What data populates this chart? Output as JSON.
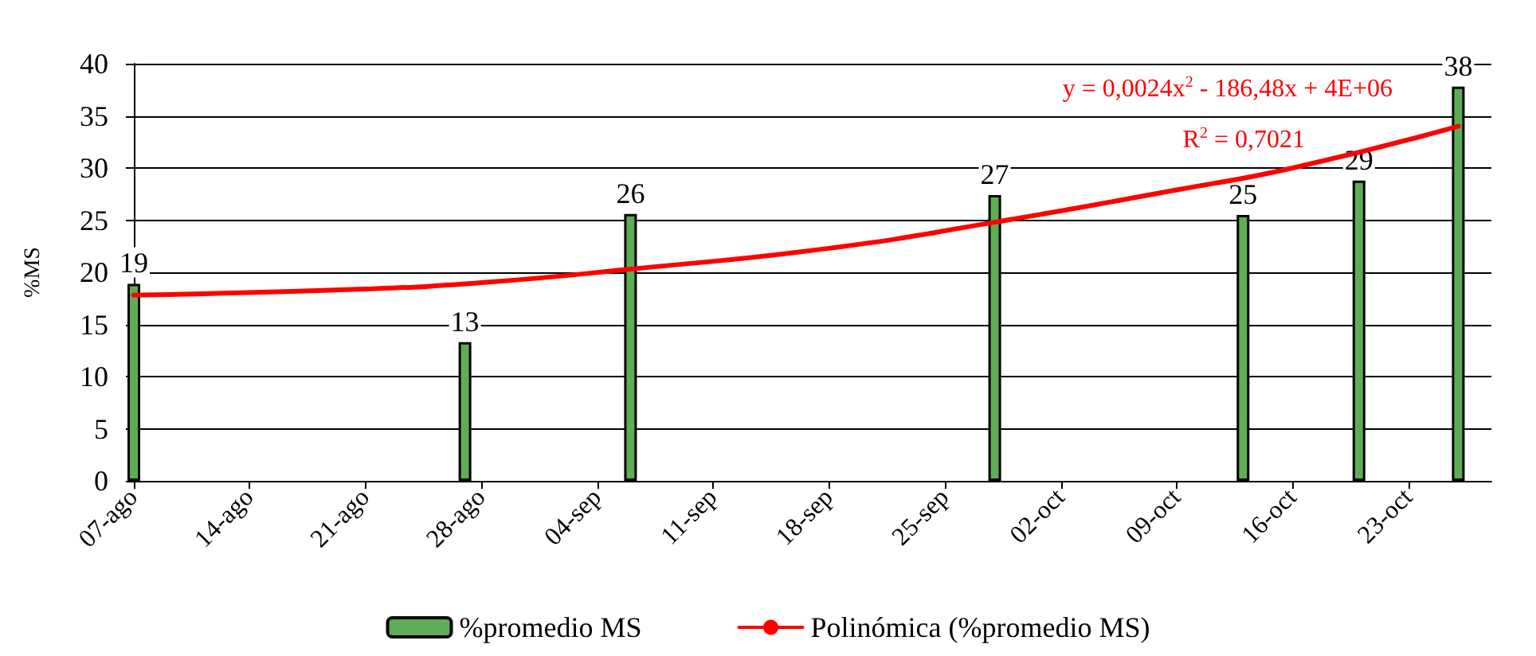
{
  "chart_data": {
    "type": "bar",
    "ylabel": "%MS",
    "x": [
      "--08-07",
      "--08-27",
      "--09-06",
      "--09-28",
      "--10-13",
      "--10-20",
      "--10-26"
    ],
    "series": [
      {
        "name": "%promedio MS",
        "color": "#5fad56",
        "values": [
          18.9,
          13.3,
          25.6,
          27.4,
          25.5,
          28.8,
          37.8
        ],
        "value_labels": [
          "19",
          "13",
          "26",
          "27",
          "25",
          "29",
          "38"
        ]
      },
      {
        "name": "Polinómica (%promedio MS)",
        "type": "line",
        "color": "#ff0000",
        "marker": "none",
        "line_style": "solid",
        "x": [
          "--08-07",
          "--08-21",
          "--08-28",
          "--09-06",
          "--09-18",
          "--09-28",
          "--10-09",
          "--10-16",
          "--10-26"
        ],
        "values": [
          17.8,
          18.4,
          19.0,
          20.3,
          22.3,
          24.8,
          27.9,
          30.0,
          34.0
        ]
      }
    ],
    "xlim": [
      "--08-07",
      "--10-28"
    ],
    "xticks": [
      {
        "value": "--08-07",
        "label": "07-ago"
      },
      {
        "value": "--08-14",
        "label": "14-ago"
      },
      {
        "value": "--08-21",
        "label": "21-ago"
      },
      {
        "value": "--08-28",
        "label": "28-ago"
      },
      {
        "value": "--09-04",
        "label": "04-sep"
      },
      {
        "value": "--09-11",
        "label": "11-sep"
      },
      {
        "value": "--09-18",
        "label": "18-sep"
      },
      {
        "value": "--09-25",
        "label": "25-sep"
      },
      {
        "value": "--10-02",
        "label": "02-oct"
      },
      {
        "value": "--10-09",
        "label": "09-oct"
      },
      {
        "value": "--10-16",
        "label": "16-oct"
      },
      {
        "value": "--10-23",
        "label": "23-oct"
      }
    ],
    "ylim": [
      0,
      40
    ],
    "yticks": [
      0,
      5,
      10,
      15,
      20,
      25,
      30,
      35,
      40
    ],
    "annotations": [
      "y = 0,0024x$^{2}$ - 186,48x + 4E+06",
      "R$^{2}$ = 0,7021"
    ],
    "grid": "y",
    "legend": "bottom"
  }
}
